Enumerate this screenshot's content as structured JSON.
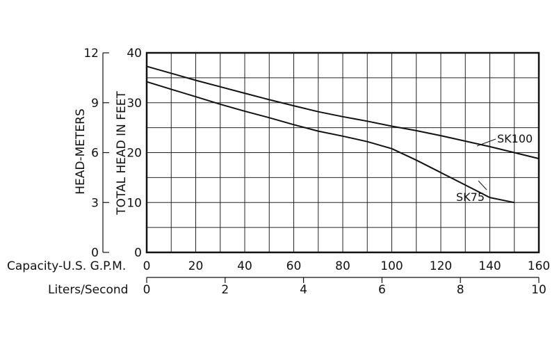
{
  "chart_data": {
    "type": "line",
    "title": "",
    "xlabel": "Capacity-U.S. G.P.M.",
    "x2label": "Liters/Second",
    "ylabel": "TOTAL HEAD IN FEET",
    "y2label": "HEAD-METERS",
    "xlim": [
      0,
      160
    ],
    "ylim": [
      0,
      40
    ],
    "x2lim": [
      0,
      10
    ],
    "y2lim": [
      0,
      12
    ],
    "x_ticks": [
      "0",
      "20",
      "40",
      "60",
      "80",
      "100",
      "120",
      "140",
      "160"
    ],
    "y_ticks": [
      "0",
      "10",
      "20",
      "30",
      "40"
    ],
    "x2_ticks": [
      "0",
      "2",
      "4",
      "6",
      "8",
      "10"
    ],
    "y2_ticks": [
      "0",
      "3",
      "6",
      "9",
      "12"
    ],
    "grid": true,
    "series": [
      {
        "name": "SK100",
        "x": [
          0,
          10,
          20,
          30,
          40,
          50,
          60,
          70,
          80,
          90,
          100,
          110,
          120,
          130,
          140,
          150,
          160
        ],
        "y": [
          37.3,
          35.9,
          34.5,
          33.2,
          31.9,
          30.6,
          29.4,
          28.2,
          27.2,
          26.3,
          25.3,
          24.4,
          23.4,
          22.3,
          21.2,
          20.0,
          18.8
        ]
      },
      {
        "name": "SK75",
        "x": [
          0,
          10,
          20,
          30,
          40,
          50,
          60,
          70,
          80,
          90,
          100,
          110,
          120,
          130,
          140,
          150
        ],
        "y": [
          34.2,
          32.7,
          31.2,
          29.7,
          28.3,
          27.0,
          25.6,
          24.3,
          23.3,
          22.2,
          20.8,
          18.5,
          16.0,
          13.5,
          11.0,
          10.0
        ]
      }
    ]
  }
}
